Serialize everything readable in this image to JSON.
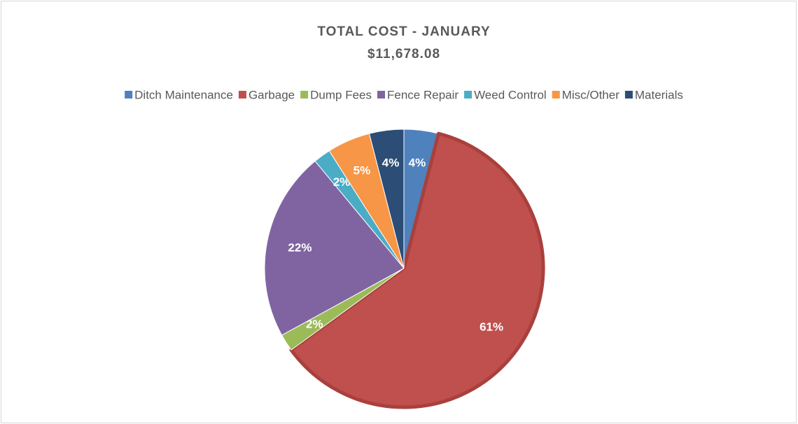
{
  "chart_data": {
    "type": "pie",
    "title": "TOTAL COST - JANUARY",
    "subtitle": "$11,678.08",
    "categories": [
      "Ditch Maintenance",
      "Garbage",
      "Dump Fees",
      "Fence Repair",
      "Weed Control",
      "Misc/Other",
      "Materials"
    ],
    "values": [
      4,
      61,
      2,
      22,
      2,
      5,
      4
    ],
    "value_labels": [
      "4%",
      "61%",
      "2%",
      "22%",
      "2%",
      "5%",
      "4%"
    ],
    "colors": [
      "#4f81bd",
      "#c0504d",
      "#9bbb59",
      "#8064a2",
      "#4bacc6",
      "#f79646",
      "#2c4d75"
    ],
    "legend": "top"
  }
}
